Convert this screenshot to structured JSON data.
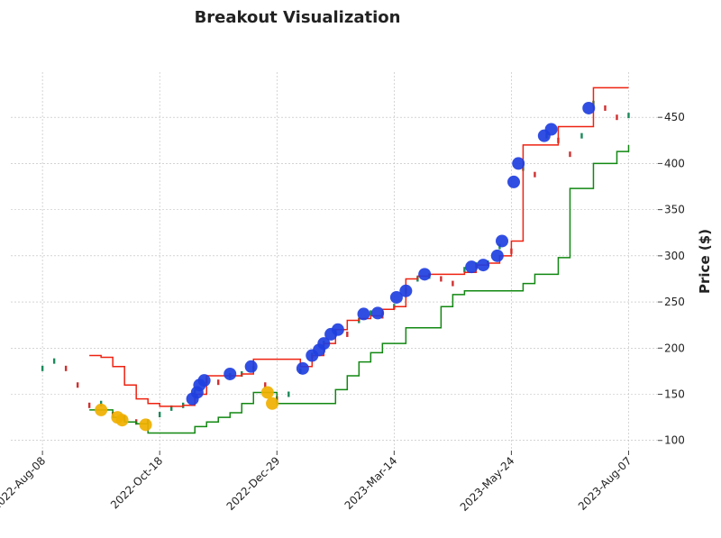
{
  "chart_data": {
    "type": "breakout",
    "title": "Breakout Visualization",
    "y_label": "Price ($)",
    "x": [
      0,
      5,
      10,
      15,
      20,
      25,
      30,
      35,
      40,
      45,
      50,
      55,
      60,
      65,
      70,
      75,
      80,
      85,
      90,
      95,
      100,
      105,
      110,
      115,
      120,
      125,
      130,
      135,
      140,
      145,
      150,
      155,
      160,
      165,
      170,
      175,
      180,
      185,
      190,
      195,
      200,
      205,
      210,
      215,
      220,
      225,
      230,
      235,
      240,
      245,
      250
    ],
    "series": [
      {
        "color": "#1a8a5a",
        "down_color": "#d03030",
        "style": "candle",
        "values": [
          178,
          186,
          178,
          160,
          138,
          140,
          128,
          124,
          120,
          120,
          128,
          135,
          138,
          152,
          165,
          163,
          170,
          172,
          178,
          160,
          145,
          150,
          175,
          192,
          205,
          218,
          215,
          230,
          238,
          235,
          245,
          262,
          275,
          278,
          275,
          270,
          285,
          290,
          292,
          310,
          305,
          395,
          388,
          430,
          425,
          410,
          430,
          465,
          460,
          450,
          452
        ]
      },
      {
        "color": "#ee2211",
        "style": "step",
        "values": [
          null,
          null,
          null,
          null,
          192,
          190,
          180,
          160,
          145,
          140,
          137,
          137,
          138,
          150,
          170,
          170,
          170,
          172,
          188,
          188,
          188,
          188,
          180,
          192,
          205,
          220,
          230,
          232,
          235,
          242,
          245,
          275,
          278,
          280,
          280,
          280,
          282,
          290,
          292,
          300,
          316,
          420,
          420,
          420,
          440,
          440,
          440,
          482,
          482,
          482,
          482
        ]
      },
      {
        "color": "#118811",
        "style": "step",
        "values": [
          null,
          null,
          null,
          null,
          133,
          133,
          125,
          120,
          118,
          108,
          108,
          108,
          108,
          115,
          120,
          125,
          130,
          140,
          152,
          152,
          140,
          140,
          140,
          140,
          140,
          155,
          170,
          185,
          195,
          205,
          205,
          222,
          222,
          222,
          245,
          258,
          262,
          262,
          262,
          262,
          262,
          270,
          280,
          280,
          298,
          373,
          373,
          400,
          400,
          413,
          420
        ]
      }
    ],
    "markers": [
      {
        "color": "#1f3fe0",
        "x": [
          64,
          66,
          67,
          69,
          80,
          89,
          111,
          115,
          118,
          120,
          123,
          126,
          137,
          143,
          151,
          155,
          163,
          183,
          188,
          194,
          196,
          201,
          203,
          214,
          217,
          233
        ],
        "values": [
          145,
          152,
          160,
          165,
          172,
          180,
          178,
          192,
          198,
          205,
          215,
          220,
          237,
          238,
          255,
          262,
          280,
          288,
          290,
          300,
          316,
          380,
          400,
          430,
          437,
          460
        ]
      },
      {
        "color": "#f0b000",
        "x": [
          25,
          32,
          34,
          44,
          96,
          98
        ],
        "values": [
          133,
          125,
          122,
          117,
          152,
          140
        ]
      }
    ],
    "xlim": [
      -13.5,
      262.5
    ],
    "ylim": [
      89,
      499
    ],
    "xticks": [
      {
        "value": 0,
        "label": "2022-Aug-08"
      },
      {
        "value": 50,
        "label": "2022-Oct-18"
      },
      {
        "value": 100,
        "label": "2022-Dec-29"
      },
      {
        "value": 150,
        "label": "2023-Mar-14"
      },
      {
        "value": 200,
        "label": "2023-May-24"
      },
      {
        "value": 250,
        "label": "2023-Aug-07"
      }
    ],
    "yticks": [
      100,
      150,
      200,
      250,
      300,
      350,
      400,
      450
    ],
    "grid": true
  }
}
